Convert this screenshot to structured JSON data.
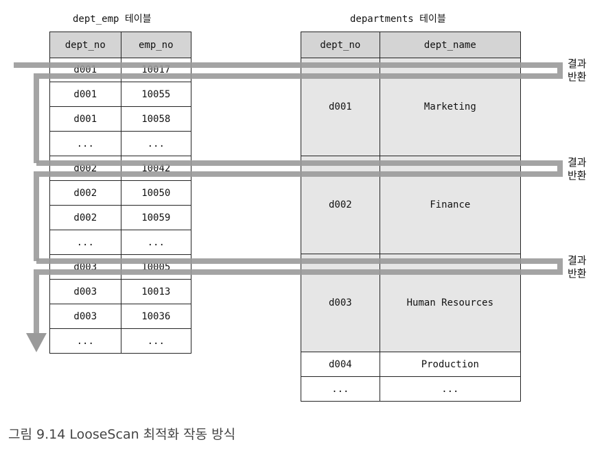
{
  "left_table": {
    "title": "dept_emp 테이블",
    "headers": [
      "dept_no",
      "emp_no"
    ],
    "rows": [
      [
        "d001",
        "10017"
      ],
      [
        "d001",
        "10055"
      ],
      [
        "d001",
        "10058"
      ],
      [
        "...",
        "..."
      ],
      [
        "d002",
        "10042"
      ],
      [
        "d002",
        "10050"
      ],
      [
        "d002",
        "10059"
      ],
      [
        "...",
        "..."
      ],
      [
        "d003",
        "10005"
      ],
      [
        "d003",
        "10013"
      ],
      [
        "d003",
        "10036"
      ],
      [
        "...",
        "..."
      ]
    ]
  },
  "right_table": {
    "title": "departments 테이블",
    "headers": [
      "dept_no",
      "dept_name"
    ],
    "groups": [
      {
        "dept_no": "d001",
        "dept_name": "Marketing"
      },
      {
        "dept_no": "d002",
        "dept_name": "Finance"
      },
      {
        "dept_no": "d003",
        "dept_name": "Human Resources"
      }
    ],
    "rows": [
      {
        "dept_no": "d004",
        "dept_name": "Production"
      },
      {
        "dept_no": "...",
        "dept_name": "..."
      }
    ]
  },
  "result_labels": [
    "결과\n반환",
    "결과\n반환",
    "결과\n반환"
  ],
  "caption": "그림 9.14 LooseScan 최적화 작동 방식",
  "colors": {
    "arrow": "#9a9a9a",
    "header_fill": "#d4d4d4",
    "group_fill": "#e6e6e6"
  }
}
